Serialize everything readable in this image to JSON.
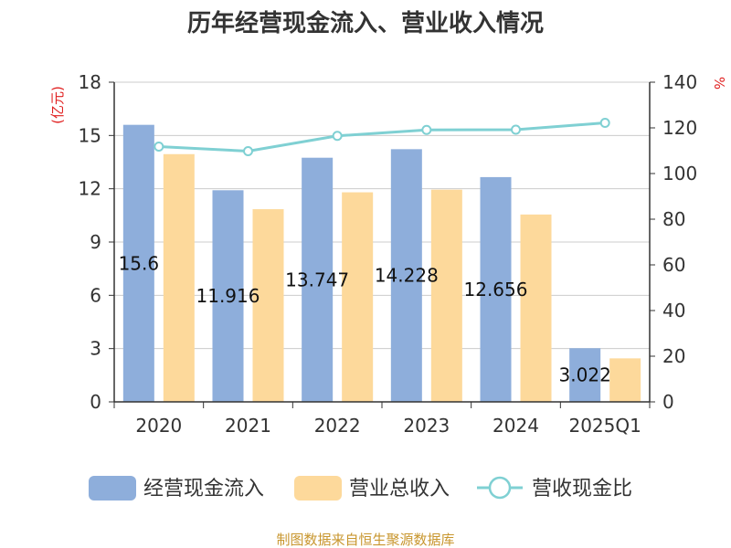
{
  "chart_data": {
    "type": "bar",
    "title": "历年经营现金流入、营业收入情况",
    "categories": [
      "2020",
      "2021",
      "2022",
      "2023",
      "2024",
      "2025Q1"
    ],
    "series": [
      {
        "name": "经营现金流入",
        "kind": "bar",
        "axis": "left",
        "color": "#8eaedb",
        "values": [
          15.6,
          11.916,
          13.747,
          14.228,
          12.656,
          3.022
        ],
        "data_labels": [
          "15.6",
          "11.916",
          "13.747",
          "14.228",
          "12.656",
          "3.022"
        ]
      },
      {
        "name": "营业总收入",
        "kind": "bar",
        "axis": "left",
        "color": "#fdd99b",
        "values": [
          13.95,
          10.85,
          11.8,
          11.95,
          10.55,
          2.45
        ]
      },
      {
        "name": "营收现金比",
        "kind": "line",
        "axis": "right",
        "color": "#7fd0d3",
        "values": [
          111.8,
          109.8,
          116.5,
          119.1,
          119.2,
          122.2
        ]
      }
    ],
    "y_left": {
      "label": "(亿元)",
      "ylim": [
        0,
        18
      ],
      "ticks": [
        "0",
        "3",
        "6",
        "9",
        "12",
        "15",
        "18"
      ]
    },
    "y_right": {
      "label": "%",
      "ylim": [
        0,
        140
      ],
      "ticks": [
        "0",
        "20",
        "40",
        "60",
        "80",
        "100",
        "120",
        "140"
      ]
    },
    "grid": true,
    "legend_position": "bottom"
  },
  "source_text": "制图数据来自恒生聚源数据库"
}
